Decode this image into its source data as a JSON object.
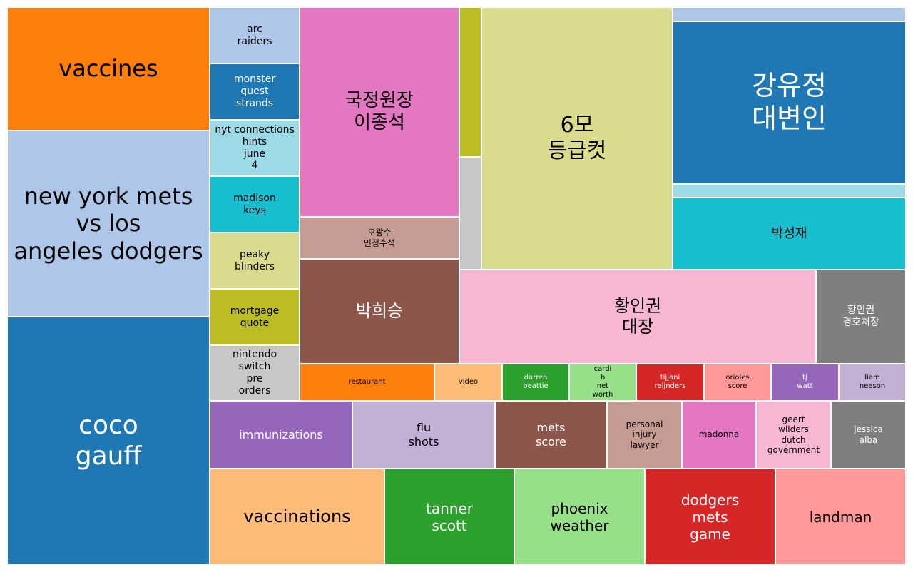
{
  "chart_data": {
    "type": "treemap",
    "tiles": [
      {
        "label": "vaccines",
        "color": "#ff7f0e",
        "text": "#000000"
      },
      {
        "label": "new york mets\nvs los\nangeles dodgers",
        "color": "#aec7e8",
        "text": "#000000"
      },
      {
        "label": "coco\ngauff",
        "color": "#1f77b4",
        "text": "#ffffff"
      },
      {
        "label": "arc\nraiders",
        "color": "#aec7e8",
        "text": "#000000"
      },
      {
        "label": "monster\nquest\nstrands",
        "color": "#1f77b4",
        "text": "#ffffff"
      },
      {
        "label": "nyt connections\nhints\njune\n4",
        "color": "#9edae5",
        "text": "#000000"
      },
      {
        "label": "madison\nkeys",
        "color": "#17becf",
        "text": "#000000"
      },
      {
        "label": "peaky\nblinders",
        "color": "#dbdb8d",
        "text": "#000000"
      },
      {
        "label": "mortgage\nquote",
        "color": "#bcbd22",
        "text": "#000000"
      },
      {
        "label": "nintendo\nswitch\npre\norders",
        "color": "#c7c7c7",
        "text": "#000000"
      },
      {
        "label": "국정원장\n이종석",
        "color": "#e377c2",
        "text": "#000000"
      },
      {
        "label": "오광수\n민정수석",
        "color": "#c49c94",
        "text": "#000000"
      },
      {
        "label": "박희승",
        "color": "#8c564b",
        "text": "#ffffff"
      },
      {
        "label": "",
        "color": "#bcbd22",
        "text": "#000000"
      },
      {
        "label": "",
        "color": "#c7c7c7",
        "text": "#000000"
      },
      {
        "label": "6모\n등급컷",
        "color": "#dbdb8d",
        "text": "#000000"
      },
      {
        "label": "",
        "color": "#aec7e8",
        "text": "#000000"
      },
      {
        "label": "강유정\n대변인",
        "color": "#1f77b4",
        "text": "#ffffff"
      },
      {
        "label": "",
        "color": "#9edae5",
        "text": "#000000"
      },
      {
        "label": "박성재",
        "color": "#17becf",
        "text": "#000000"
      },
      {
        "label": "황인권\n대장",
        "color": "#f7b6d2",
        "text": "#000000"
      },
      {
        "label": "황인권\n경호처장",
        "color": "#7f7f7f",
        "text": "#ffffff"
      },
      {
        "label": "restaurant",
        "color": "#ff7f0e",
        "text": "#000000"
      },
      {
        "label": "video",
        "color": "#ffbb78",
        "text": "#000000"
      },
      {
        "label": "darren\nbeattie",
        "color": "#2ca02c",
        "text": "#ffffff"
      },
      {
        "label": "cardi\nb\nnet\nworth",
        "color": "#98df8a",
        "text": "#000000"
      },
      {
        "label": "tijjani\nreijnders",
        "color": "#d62728",
        "text": "#ffffff"
      },
      {
        "label": "orioles\nscore",
        "color": "#ff9896",
        "text": "#000000"
      },
      {
        "label": "tj\nwatt",
        "color": "#9467bd",
        "text": "#ffffff"
      },
      {
        "label": "liam\nneeson",
        "color": "#c5b0d5",
        "text": "#000000"
      },
      {
        "label": "immunizations",
        "color": "#9467bd",
        "text": "#ffffff"
      },
      {
        "label": "flu\nshots",
        "color": "#c5b0d5",
        "text": "#000000"
      },
      {
        "label": "mets\nscore",
        "color": "#8c564b",
        "text": "#ffffff"
      },
      {
        "label": "personal\ninjury\nlawyer",
        "color": "#c49c94",
        "text": "#000000"
      },
      {
        "label": "madonna",
        "color": "#e377c2",
        "text": "#000000"
      },
      {
        "label": "geert\nwilders\ndutch\ngovernment",
        "color": "#f7b6d2",
        "text": "#000000"
      },
      {
        "label": "jessica\nalba",
        "color": "#7f7f7f",
        "text": "#ffffff"
      },
      {
        "label": "vaccinations",
        "color": "#ffbb78",
        "text": "#000000"
      },
      {
        "label": "tanner\nscott",
        "color": "#2ca02c",
        "text": "#ffffff"
      },
      {
        "label": "phoenix\nweather",
        "color": "#98df8a",
        "text": "#000000"
      },
      {
        "label": "dodgers\nmets\ngame",
        "color": "#d62728",
        "text": "#ffffff"
      },
      {
        "label": "landman",
        "color": "#ff9896",
        "text": "#000000"
      }
    ]
  }
}
